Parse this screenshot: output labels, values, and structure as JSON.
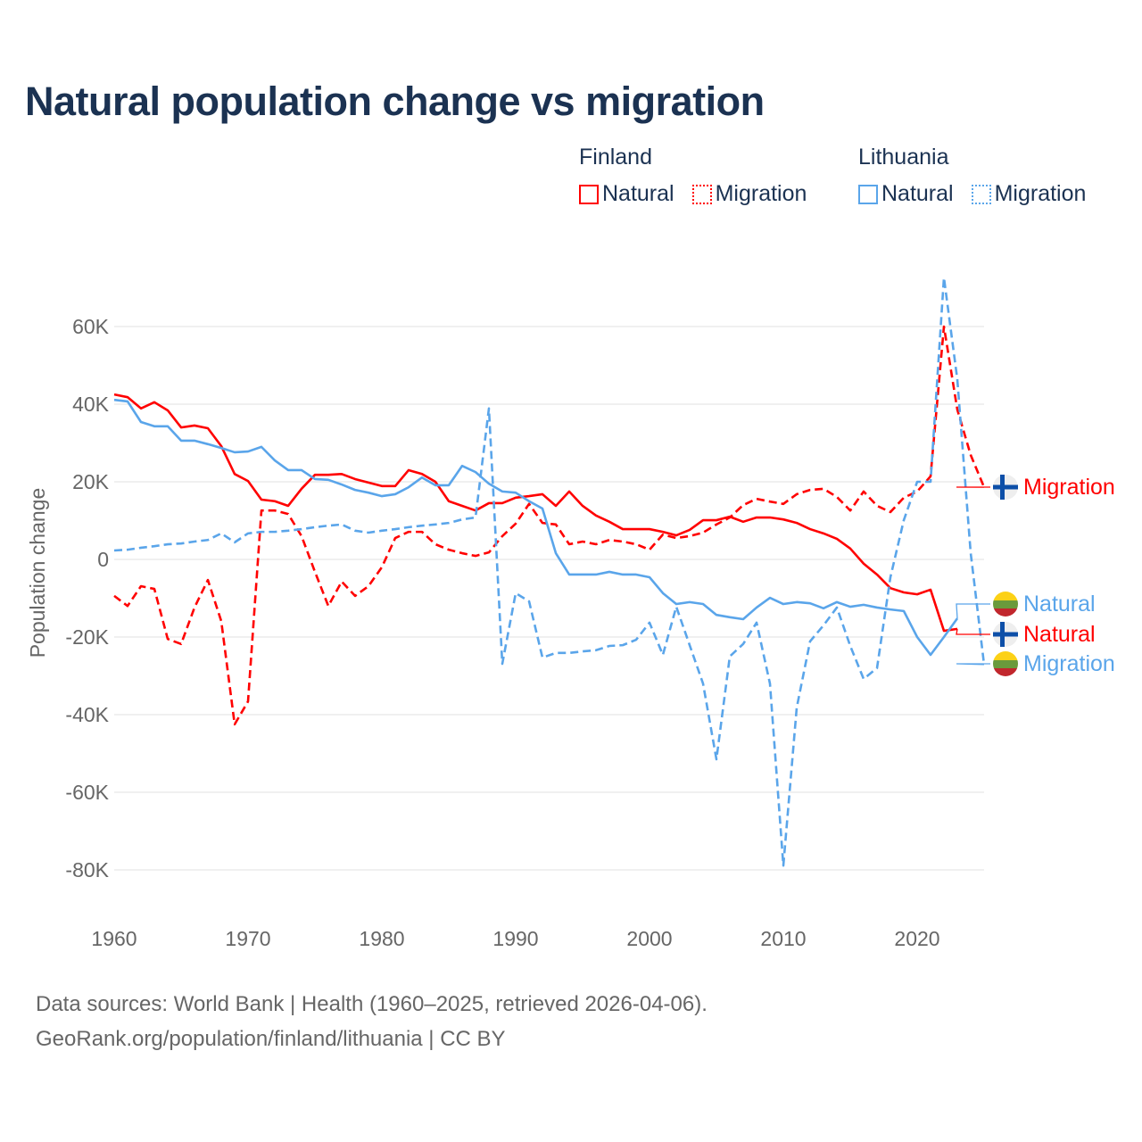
{
  "title": "Natural population change vs migration",
  "legend": {
    "groups": [
      {
        "country": "Finland",
        "items": [
          "Natural",
          "Migration"
        ],
        "color": "#ff0000"
      },
      {
        "country": "Lithuania",
        "items": [
          "Natural",
          "Migration"
        ],
        "color": "#5aa5ea"
      }
    ]
  },
  "sources": {
    "line1": "Data sources: World Bank | Health (1960–2025, retrieved 2026-04-06).",
    "line2": "GeoRank.org/population/finland/lithuania | CC BY"
  },
  "chart_data": {
    "type": "line",
    "title": "Natural population change vs migration",
    "xlabel": "",
    "ylabel": "Population change",
    "xlim": [
      1960,
      2025
    ],
    "ylim": [
      -90000,
      75000
    ],
    "x_ticks": [
      1960,
      1970,
      1980,
      1990,
      2000,
      2010,
      2020
    ],
    "y_ticks": [
      -80000,
      -60000,
      -40000,
      -20000,
      0,
      20000,
      40000,
      60000
    ],
    "y_tick_labels": [
      "-80K",
      "-60K",
      "-40K",
      "-20K",
      "0",
      "20K",
      "40K",
      "60K"
    ],
    "grid": true,
    "legend_position": "top-right",
    "start_year": 1960,
    "series": [
      {
        "name": "Finland Natural",
        "label": "Natural",
        "country": "Finland",
        "color": "#ff0000",
        "dashed": false,
        "flag": "finland",
        "values": [
          42.5,
          41.8,
          38.9,
          40.5,
          38.4,
          34,
          34.5,
          33.8,
          29.2,
          22,
          20.2,
          15.4,
          15,
          13.8,
          18.2,
          21.8,
          21.8,
          22,
          20.7,
          19.8,
          18.9,
          18.9,
          23,
          22,
          20,
          15,
          13.8,
          12.6,
          14.5,
          14.5,
          15.9,
          16.3,
          16.8,
          13.8,
          17.5,
          13.8,
          11.3,
          9.7,
          7.8,
          7.8,
          7.8,
          7.1,
          6.2,
          7.6,
          10.1,
          10.1,
          11,
          9.7,
          10.8,
          10.8,
          10.3,
          9.4,
          7.8,
          6.7,
          5.3,
          2.8,
          -1.1,
          -3.9,
          -7.4,
          -8.5,
          -9,
          -7.8,
          -18.4,
          -17.9
        ]
      },
      {
        "name": "Finland Migration",
        "label": "Migration",
        "country": "Finland",
        "color": "#ff0000",
        "dashed": true,
        "flag": "finland",
        "values": [
          -9.4,
          -12,
          -6.9,
          -7.6,
          -20.5,
          -21.8,
          -12.4,
          -5.3,
          -15.9,
          -42.5,
          -36.6,
          12.6,
          12.6,
          11.7,
          6,
          -3.2,
          -12,
          -5.7,
          -9.4,
          -6.9,
          -2,
          5.5,
          7.1,
          7.1,
          3.9,
          2.5,
          1.6,
          0.9,
          1.8,
          6,
          9.2,
          14.3,
          9.4,
          9,
          3.9,
          4.6,
          3.9,
          5,
          4.6,
          3.9,
          2.5,
          6.4,
          5.5,
          6,
          6.9,
          9,
          10.8,
          14,
          15.6,
          14.9,
          14.3,
          16.8,
          17.9,
          18.2,
          16.1,
          12.6,
          17.5,
          13.8,
          12.2,
          15.9,
          17.5,
          21.4,
          60,
          38.6,
          26.9,
          18.6
        ]
      },
      {
        "name": "Lithuania Natural",
        "label": "Natural",
        "country": "Lithuania",
        "color": "#5aa5ea",
        "dashed": false,
        "flag": "lithuania",
        "values": [
          41.1,
          40.7,
          35.4,
          34.3,
          34.3,
          30.6,
          30.6,
          29.7,
          28.7,
          27.6,
          27.8,
          29,
          25.5,
          23,
          23,
          20.7,
          20.5,
          19.3,
          17.9,
          17.2,
          16.3,
          16.8,
          18.6,
          21.1,
          19.1,
          19.1,
          24.1,
          22.5,
          19.5,
          17.5,
          17.2,
          15,
          13.1,
          1.6,
          -3.9,
          -3.9,
          -3.9,
          -3.2,
          -3.9,
          -3.9,
          -4.6,
          -8.7,
          -11.5,
          -11,
          -11.5,
          -14.3,
          -14.9,
          -15.4,
          -12.4,
          -9.9,
          -11.5,
          -11,
          -11.3,
          -12.6,
          -11,
          -12.2,
          -11.7,
          -12.4,
          -12.9,
          -13.3,
          -20,
          -24.6,
          -20,
          -15.2
        ]
      },
      {
        "name": "Lithuania Migration",
        "label": "Migration",
        "country": "Lithuania",
        "color": "#5aa5ea",
        "dashed": true,
        "flag": "lithuania",
        "values": [
          2.3,
          2.5,
          3,
          3.4,
          3.9,
          4.1,
          4.6,
          5,
          6.7,
          4.4,
          6.7,
          7.1,
          7.1,
          7.4,
          7.8,
          8.3,
          8.7,
          9,
          7.4,
          6.9,
          7.4,
          7.8,
          8.3,
          8.7,
          9,
          9.4,
          10.3,
          10.8,
          38.9,
          -26.9,
          -8.7,
          -10.8,
          -25.3,
          -24.1,
          -24.1,
          -23.7,
          -23.4,
          -22.3,
          -22.1,
          -20.7,
          -16.3,
          -24.6,
          -12.2,
          -22.1,
          -32,
          -51.5,
          -25,
          -21.8,
          -16.3,
          -32,
          -78.9,
          -38.2,
          -21.1,
          -17,
          -12.4,
          -22.3,
          -30.8,
          -28,
          -4.6,
          10.1,
          20,
          20,
          72.6,
          46.4,
          1.6,
          -27.1
        ]
      }
    ],
    "value_unit": "thousands",
    "end_label_order": [
      "Finland Migration",
      "Lithuania Natural",
      "Finland Natural",
      "Lithuania Migration"
    ]
  }
}
